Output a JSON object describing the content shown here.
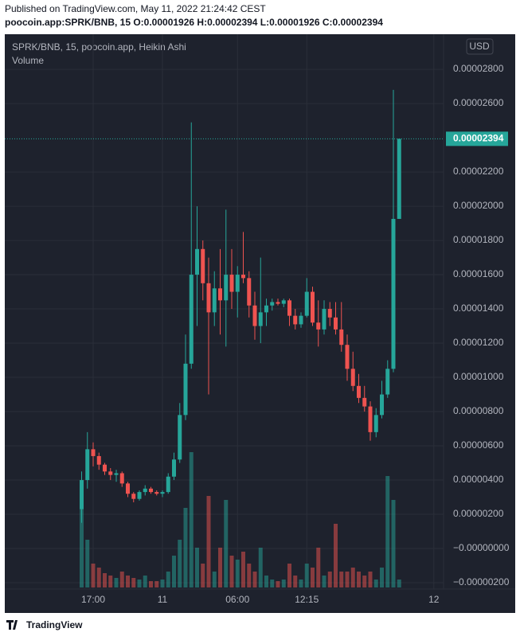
{
  "page": {
    "published": "Published on TradingView.com, May 11, 2022 21:24:42 CEST",
    "symbol_line": "poocoin.app:SPRK/BNB, 15  O:0.00001926 H:0.00002394 L:0.00001926 C:0.00002394",
    "brand": "TradingView"
  },
  "chart_data": {
    "type": "candlestick",
    "title": "SPRK/BNB, 15, poocoin.app, Heikin Ashi",
    "volume_label": "Volume",
    "currency": "USD",
    "up_color": "#26a69a",
    "down_color": "#ef5350",
    "categories": [
      null,
      null,
      "17:00",
      null,
      null,
      null,
      null,
      null,
      null,
      null,
      null,
      null,
      null,
      null,
      "11",
      null,
      null,
      null,
      null,
      null,
      null,
      null,
      null,
      null,
      null,
      null,
      null,
      "06:00",
      null,
      null,
      null,
      null,
      null,
      null,
      null,
      null,
      null,
      null,
      null,
      "12:15",
      null,
      null,
      null,
      null,
      null,
      null,
      null,
      null,
      null,
      null,
      null,
      null,
      null,
      null,
      null,
      null,
      null,
      null,
      null,
      null,
      null,
      "12"
    ],
    "open": [
      2.3e-06,
      4e-06,
      5.8e-06,
      5.4e-06,
      4.9e-06,
      4.5e-06,
      4.3e-06,
      4.4e-06,
      3.8e-06,
      3.2e-06,
      2.9e-06,
      3.3e-06,
      3.5e-06,
      3.3e-06,
      3.2e-06,
      3.3e-06,
      4.2e-06,
      5.2e-06,
      7.8e-06,
      1.08e-05,
      1.6e-05,
      1.75e-05,
      1.55e-05,
      1.38e-05,
      1.52e-05,
      1.45e-05,
      1.6e-05,
      1.5e-05,
      1.6e-05,
      1.58e-05,
      1.42e-05,
      1.3e-05,
      1.38e-05,
      1.42e-05,
      1.44e-05,
      1.43e-05,
      1.45e-05,
      1.36e-05,
      1.31e-05,
      1.36e-05,
      1.5e-05,
      1.32e-05,
      1.28e-05,
      1.4e-05,
      1.35e-05,
      1.28e-05,
      1.19e-05,
      1.05e-05,
      9.5e-06,
      8.8e-06,
      8.3e-06,
      6.8e-06,
      7.8e-06,
      9e-06,
      1.05e-05,
      1.926e-05,
      null,
      null,
      null,
      null,
      null,
      null
    ],
    "high": [
      4.5e-06,
      6.8e-06,
      6.2e-06,
      5.6e-06,
      5e-06,
      4.7e-06,
      4.6e-06,
      4.5e-06,
      3.9e-06,
      3.3e-06,
      3.4e-06,
      3.7e-06,
      3.6e-06,
      3.4e-06,
      3.4e-06,
      4.4e-06,
      5.6e-06,
      8.5e-06,
      1.25e-05,
      2.49e-05,
      2e-05,
      1.8e-05,
      1.7e-05,
      1.62e-05,
      1.75e-05,
      1.98e-05,
      1.75e-05,
      1.65e-05,
      1.85e-05,
      1.62e-05,
      1.5e-05,
      1.7e-05,
      1.46e-05,
      1.46e-05,
      1.46e-05,
      1.46e-05,
      1.46e-05,
      1.4e-05,
      1.38e-05,
      1.58e-05,
      1.53e-05,
      1.45e-05,
      1.45e-05,
      1.44e-05,
      1.44e-05,
      1.44e-05,
      1.25e-05,
      1.15e-05,
      1.02e-05,
      9.5e-06,
      8.6e-06,
      8.2e-06,
      9.8e-06,
      1.1e-05,
      2.68e-05,
      2.394e-05,
      null,
      null,
      null,
      null,
      null,
      null
    ],
    "low": [
      1.5e-06,
      3.5e-06,
      4.8e-06,
      4.6e-06,
      4.3e-06,
      4e-06,
      3.9e-06,
      3.6e-06,
      3e-06,
      2.7e-06,
      2.8e-06,
      3.1e-06,
      3.2e-06,
      3.1e-06,
      3e-06,
      3.2e-06,
      4e-06,
      5e-06,
      7.5e-06,
      1.05e-05,
      1.3e-05,
      1.45e-05,
      9e-06,
      1.3e-05,
      1.25e-05,
      1.18e-05,
      1.4e-05,
      1.35e-05,
      1.55e-05,
      1.35e-05,
      1.22e-05,
      1.2e-05,
      1.3e-05,
      1.39e-05,
      1.42e-05,
      1.41e-05,
      1.3e-05,
      1.28e-05,
      1.29e-05,
      1.35e-05,
      1.3e-05,
      1.18e-05,
      1.25e-05,
      1.3e-05,
      1.25e-05,
      1.15e-05,
      9.8e-06,
      9.2e-06,
      8.5e-06,
      8e-06,
      6.3e-06,
      6.5e-06,
      7.6e-06,
      8.8e-06,
      1.03e-05,
      1.926e-05,
      null,
      null,
      null,
      null,
      null,
      null
    ],
    "close": [
      4e-06,
      5.8e-06,
      5.4e-06,
      4.9e-06,
      4.5e-06,
      4.3e-06,
      4.4e-06,
      3.8e-06,
      3.2e-06,
      2.9e-06,
      3.3e-06,
      3.5e-06,
      3.3e-06,
      3.2e-06,
      3.3e-06,
      4.2e-06,
      5.2e-06,
      7.8e-06,
      1.08e-05,
      1.6e-05,
      1.75e-05,
      1.55e-05,
      1.38e-05,
      1.52e-05,
      1.45e-05,
      1.6e-05,
      1.5e-05,
      1.6e-05,
      1.58e-05,
      1.42e-05,
      1.3e-05,
      1.38e-05,
      1.42e-05,
      1.44e-05,
      1.43e-05,
      1.45e-05,
      1.36e-05,
      1.31e-05,
      1.36e-05,
      1.5e-05,
      1.32e-05,
      1.28e-05,
      1.4e-05,
      1.35e-05,
      1.28e-05,
      1.19e-05,
      1.05e-05,
      9.5e-06,
      8.8e-06,
      8.3e-06,
      6.8e-06,
      7.8e-06,
      9e-06,
      1.05e-05,
      1.926e-05,
      2.394e-05,
      null,
      null,
      null,
      null,
      null,
      null
    ],
    "volume": [
      110,
      60,
      30,
      25,
      18,
      15,
      12,
      20,
      15,
      12,
      10,
      15,
      8,
      8,
      10,
      20,
      40,
      60,
      100,
      170,
      50,
      30,
      115,
      20,
      50,
      110,
      40,
      35,
      45,
      30,
      20,
      50,
      15,
      10,
      8,
      10,
      30,
      15,
      10,
      30,
      25,
      50,
      15,
      20,
      80,
      20,
      20,
      25,
      20,
      15,
      20,
      10,
      25,
      140,
      110,
      10,
      null,
      null,
      null,
      null,
      null,
      null
    ],
    "volume_lim": [
      0,
      200
    ],
    "ylim": [
      -2.37e-06,
      3.005e-05
    ],
    "yticks": [
      {
        "value": 2.8e-05,
        "label": "0.00002800"
      },
      {
        "value": 2.6e-05,
        "label": "0.00002600"
      },
      {
        "value": 2.2e-05,
        "label": "0.00002200"
      },
      {
        "value": 2e-05,
        "label": "0.00002000"
      },
      {
        "value": 1.8e-05,
        "label": "0.00001800"
      },
      {
        "value": 1.6e-05,
        "label": "0.00001600"
      },
      {
        "value": 1.4e-05,
        "label": "0.00001400"
      },
      {
        "value": 1.2e-05,
        "label": "0.00001200"
      },
      {
        "value": 1e-05,
        "label": "0.00001000"
      },
      {
        "value": 8e-06,
        "label": "0.00000800"
      },
      {
        "value": 6e-06,
        "label": "0.00000600"
      },
      {
        "value": 4e-06,
        "label": "0.00000400"
      },
      {
        "value": 2e-06,
        "label": "0.00000200"
      },
      {
        "value": 0,
        "label": "−0.00000000"
      },
      {
        "value": -2e-06,
        "label": "−0.00000200"
      }
    ],
    "last_price": {
      "value": 2.394e-05,
      "label": "0.00002394"
    },
    "grid": true
  }
}
